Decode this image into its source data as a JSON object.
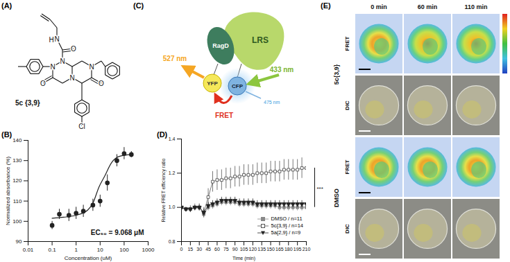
{
  "panel_labels": [
    "(A)",
    "(B)",
    "(C)",
    "(D)",
    "(E)"
  ],
  "structure": {
    "name": "5c {3,9}",
    "atom_labels": [
      "H",
      "N",
      "O",
      "N",
      "N",
      "N",
      "N",
      "O",
      "O",
      "Cl"
    ]
  },
  "chart_data": [
    {
      "type": "scatter",
      "x_label": "Concentration (uM)",
      "y_label": "Normalized absorbance (%)",
      "log": "x",
      "xlim": [
        0.01,
        1000
      ],
      "xticks": [
        0.01,
        0.1,
        1,
        10,
        100,
        1000
      ],
      "ylim": [
        90,
        140
      ],
      "yticks": [
        90,
        100,
        110,
        120,
        130,
        140
      ],
      "annotation": "EC₅₀ = 9.068 μM",
      "series": [
        {
          "type": "scatter",
          "marker": "circle",
          "color": "#222222",
          "x": [
            0.1,
            0.2,
            0.5,
            1,
            2,
            5,
            10,
            20,
            50,
            100,
            200
          ],
          "values": [
            98,
            103.5,
            103,
            104,
            105,
            108,
            110,
            119,
            130,
            133.5,
            133
          ],
          "error": [
            2,
            2.5,
            3,
            3,
            3,
            3,
            3,
            4,
            3,
            3,
            1.5
          ]
        },
        {
          "type": "line",
          "color": "#222222",
          "x": [
            0.1,
            0.3,
            1,
            3,
            5,
            9,
            15,
            30,
            60,
            200
          ],
          "values": [
            101.5,
            102,
            103,
            105.5,
            109,
            117,
            122,
            129,
            132,
            133
          ]
        }
      ]
    },
    {
      "type": "line",
      "x_label": "Time (min)",
      "y_label": "Relative FRET efficiency ratio",
      "xlim": [
        0,
        210
      ],
      "xticks": [
        0,
        15,
        30,
        45,
        60,
        75,
        90,
        105,
        120,
        135,
        150,
        165,
        180,
        195,
        210
      ],
      "ylim": [
        0.8,
        1.4
      ],
      "yticks": [
        0.8,
        {
          "value": 1,
          "label": "1.0"
        },
        1.2,
        1.4
      ],
      "legend": "bottom-right",
      "annotation": "***",
      "x": [
        0,
        7.5,
        15,
        22.5,
        30,
        37.5,
        45,
        52.5,
        60,
        67.5,
        75,
        82.5,
        90,
        97.5,
        105,
        112.5,
        120,
        127.5,
        135,
        142.5,
        150,
        157.5,
        165,
        172.5,
        180,
        187.5,
        195,
        202.5,
        210
      ],
      "series": [
        {
          "name": "DMSO / n=11",
          "color": "#888888",
          "marker": "square",
          "values": [
            1.0,
            0.99,
            0.99,
            1.0,
            1.0,
            0.96,
            1.0,
            1.01,
            1.02,
            1.03,
            1.03,
            1.03,
            1.03,
            1.02,
            1.02,
            1.02,
            1.02,
            1.01,
            1.01,
            1.01,
            1.01,
            1.01,
            1.0,
            1.0,
            1.0,
            1.0,
            1.0,
            1.0,
            1.0
          ],
          "error": [
            0.01,
            0.01,
            0.01,
            0.01,
            0.02,
            0.02,
            0.02,
            0.02,
            0.02,
            0.02,
            0.02,
            0.02,
            0.02,
            0.02,
            0.02,
            0.02,
            0.02,
            0.02,
            0.02,
            0.02,
            0.02,
            0.02,
            0.02,
            0.02,
            0.02,
            0.02,
            0.02,
            0.02,
            0.02
          ]
        },
        {
          "name": "5c{3,9} / n=14",
          "color": "#555555",
          "marker": "square-open",
          "values": [
            1.0,
            0.99,
            0.99,
            1.0,
            1.0,
            0.97,
            1.06,
            1.15,
            1.16,
            1.16,
            1.17,
            1.17,
            1.18,
            1.18,
            1.19,
            1.19,
            1.19,
            1.2,
            1.2,
            1.2,
            1.21,
            1.21,
            1.21,
            1.22,
            1.22,
            1.22,
            1.22,
            1.23,
            1.23
          ],
          "error": [
            0.01,
            0.01,
            0.02,
            0.02,
            0.02,
            0.03,
            0.05,
            0.06,
            0.06,
            0.06,
            0.06,
            0.06,
            0.06,
            0.06,
            0.06,
            0.06,
            0.06,
            0.06,
            0.06,
            0.06,
            0.06,
            0.06,
            0.06,
            0.06,
            0.06,
            0.06,
            0.06,
            0.06,
            0.06
          ]
        },
        {
          "name": "5a{2,9} / n=9",
          "color": "#222222",
          "marker": "triangle-down",
          "values": [
            1.0,
            0.99,
            0.99,
            1.0,
            1.0,
            0.97,
            1.01,
            1.02,
            1.03,
            1.04,
            1.04,
            1.04,
            1.04,
            1.03,
            1.03,
            1.03,
            1.03,
            1.02,
            1.02,
            1.02,
            1.02,
            1.02,
            1.02,
            1.02,
            1.02,
            1.02,
            1.02,
            1.02,
            1.02
          ],
          "error": [
            0.01,
            0.01,
            0.01,
            0.01,
            0.01,
            0.02,
            0.02,
            0.02,
            0.02,
            0.02,
            0.02,
            0.02,
            0.02,
            0.02,
            0.02,
            0.02,
            0.02,
            0.02,
            0.02,
            0.02,
            0.02,
            0.02,
            0.02,
            0.02,
            0.02,
            0.02,
            0.02,
            0.02,
            0.02
          ]
        }
      ]
    }
  ],
  "diagram": {
    "nodes": [
      {
        "label": "RagD"
      },
      {
        "label": "LRS"
      },
      {
        "label": "YFP"
      },
      {
        "label": "CFP"
      }
    ],
    "transfer": "FRET",
    "excitation": "433 nm",
    "emission_yfp": "527 nm",
    "emission_cfp": "475 nm"
  },
  "images": {
    "columns": [
      "0 min",
      "60 min",
      "110 min"
    ],
    "groups": [
      {
        "label": "5c{3,9}",
        "rows": [
          "FRET",
          "DIC"
        ]
      },
      {
        "label": "DMSO",
        "rows": [
          "FRET",
          "DIC"
        ]
      }
    ]
  }
}
